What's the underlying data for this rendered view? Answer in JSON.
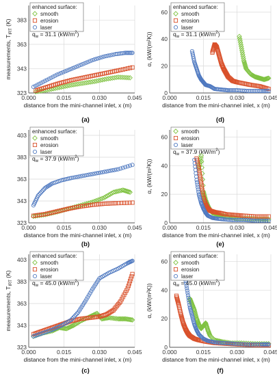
{
  "colors": {
    "smooth": "#7fc241",
    "erosion": "#d9512b",
    "laser": "#4f79c0",
    "grid": "#d9d9d9",
    "axis": "#555555"
  },
  "chart_data": [
    {
      "panel": "(a)",
      "type": "scatter",
      "xlabel": "distance from the mini-channel inlet, x (m)",
      "ylabel": "measurements, T_IRT (K)",
      "ylabel_main": "measurements, T",
      "ylabel_sub": "IRT",
      "ylabel_unit": " (K)",
      "xlim": [
        0,
        0.045
      ],
      "ylim": [
        323,
        395
      ],
      "xticks": [
        "0.000",
        "0.015",
        "0.030",
        "0.045"
      ],
      "yticks": [
        "323",
        "343",
        "363",
        "383"
      ],
      "legend_title": "enhanced surface:",
      "annotation": "q_w = 31.1 (kW/m^2)",
      "series": [
        {
          "name": "smooth",
          "marker": "diamond",
          "x": [
            0.003,
            0.008,
            0.013,
            0.018,
            0.023,
            0.028,
            0.033,
            0.038,
            0.043
          ],
          "y": [
            324,
            325.5,
            327.5,
            329.5,
            331,
            332.5,
            334.5,
            336,
            335.5
          ]
        },
        {
          "name": "erosion",
          "marker": "square",
          "x": [
            0.003,
            0.008,
            0.013,
            0.018,
            0.023,
            0.028,
            0.033,
            0.038,
            0.044
          ],
          "y": [
            325,
            328,
            331,
            333.5,
            335.5,
            337.5,
            339.5,
            341.5,
            344
          ]
        },
        {
          "name": "laser",
          "marker": "circle",
          "x": [
            0.002,
            0.007,
            0.012,
            0.017,
            0.022,
            0.027,
            0.032,
            0.037,
            0.041,
            0.044
          ],
          "y": [
            328,
            333,
            338,
            342,
            346,
            350,
            353,
            355,
            356,
            356
          ]
        }
      ]
    },
    {
      "panel": "(d)",
      "type": "scatter",
      "xlabel": "distance from the mini-channel inlet, x (m)",
      "ylabel": "α, (kW/(m²K))",
      "xlim": [
        0,
        0.045
      ],
      "ylim": [
        0,
        65
      ],
      "xticks": [
        "0.000",
        "0.015",
        "0.030",
        "0.045"
      ],
      "yticks": [
        "0",
        "20",
        "40",
        "60"
      ],
      "legend_title": "enhanced surface:",
      "annotation": "q_w = 31.1 (kW/m^2)",
      "series": [
        {
          "name": "smooth",
          "marker": "diamond",
          "x": [
            0.031,
            0.032,
            0.033,
            0.034,
            0.036,
            0.038,
            0.04,
            0.042,
            0.044
          ],
          "y": [
            42,
            33,
            24,
            18,
            14,
            12,
            11,
            10,
            11
          ]
        },
        {
          "name": "erosion",
          "marker": "square",
          "x": [
            0.019,
            0.02,
            0.021,
            0.022,
            0.023,
            0.024,
            0.025,
            0.026,
            0.028,
            0.03,
            0.033,
            0.036,
            0.04,
            0.044
          ],
          "y": [
            30,
            36,
            34,
            28,
            22,
            18,
            15,
            12,
            9,
            8,
            7,
            6,
            5,
            3
          ]
        },
        {
          "name": "laser",
          "marker": "circle",
          "x": [
            0.01,
            0.011,
            0.012,
            0.013,
            0.014,
            0.015,
            0.016,
            0.018,
            0.02,
            0.023,
            0.026,
            0.03,
            0.035,
            0.04,
            0.044
          ],
          "y": [
            31,
            23,
            18,
            13,
            10,
            8,
            6,
            5,
            3,
            2.5,
            2,
            2,
            1.5,
            1.5,
            1.5
          ]
        }
      ]
    },
    {
      "panel": "(b)",
      "type": "scatter",
      "xlabel": "distance from the mini-channel inlet, x (m)",
      "ylabel": "measurements, T_IRT (K)",
      "ylabel_main": "",
      "ylabel_sub": "",
      "ylabel_unit": "",
      "xlim": [
        0,
        0.045
      ],
      "ylim": [
        323,
        408
      ],
      "xticks": [
        "0.000",
        "0.015",
        "0.030",
        "0.045"
      ],
      "yticks": [
        "323",
        "343",
        "363",
        "383",
        "403"
      ],
      "legend_title": "enhanced surface:",
      "annotation": "q_w = 37.9 (kW/m^2)",
      "series": [
        {
          "name": "smooth",
          "marker": "diamond",
          "x": [
            0.002,
            0.007,
            0.012,
            0.017,
            0.022,
            0.027,
            0.032,
            0.036,
            0.04,
            0.043
          ],
          "y": [
            329,
            330.5,
            333,
            336,
            339,
            342,
            346,
            351,
            353,
            351
          ]
        },
        {
          "name": "erosion",
          "marker": "square",
          "x": [
            0.002,
            0.007,
            0.012,
            0.017,
            0.022,
            0.027,
            0.032,
            0.037,
            0.044
          ],
          "y": [
            329.5,
            331,
            333.5,
            336,
            338,
            339.5,
            340.5,
            341,
            341.5
          ]
        },
        {
          "name": "laser",
          "marker": "circle",
          "x": [
            0.002,
            0.004,
            0.007,
            0.01,
            0.014,
            0.018,
            0.023,
            0.028,
            0.033,
            0.038,
            0.044
          ],
          "y": [
            339,
            348,
            355,
            359,
            362,
            364,
            366,
            368,
            370,
            372,
            376
          ]
        }
      ]
    },
    {
      "panel": "(e)",
      "type": "scatter",
      "xlabel": "distance from the mini-channel inlet, x (m)",
      "ylabel": "α, (kW/(m²K))",
      "xlim": [
        0,
        0.045
      ],
      "ylim": [
        0,
        65
      ],
      "xticks": [
        "0.000",
        "0.015",
        "0.030",
        "0.045"
      ],
      "yticks": [
        "0",
        "20",
        "40",
        "60"
      ],
      "legend_title": "",
      "annotation": "q_w = 37.9 (kW/m^2)",
      "series": [
        {
          "name": "smooth",
          "marker": "diamond",
          "x": [
            0.013,
            0.014,
            0.015,
            0.016,
            0.017,
            0.018,
            0.019,
            0.021,
            0.023,
            0.026,
            0.03,
            0.035,
            0.04,
            0.044
          ],
          "y": [
            38,
            47,
            22,
            16,
            12,
            9,
            7,
            6,
            5,
            4,
            3,
            3,
            2.5,
            2.5
          ]
        },
        {
          "name": "erosion",
          "marker": "square",
          "x": [
            0.012,
            0.013,
            0.014,
            0.015,
            0.016,
            0.017,
            0.018,
            0.02,
            0.022,
            0.025,
            0.029,
            0.033,
            0.038,
            0.044
          ],
          "y": [
            45,
            38,
            28,
            18,
            13,
            10,
            8.5,
            7.5,
            7,
            6,
            5.5,
            5,
            4.5,
            4.5
          ]
        },
        {
          "name": "laser",
          "marker": "circle",
          "x": [
            0.011,
            0.012,
            0.013,
            0.014,
            0.015,
            0.016,
            0.017,
            0.019,
            0.021,
            0.024,
            0.028,
            0.033,
            0.038,
            0.044
          ],
          "y": [
            44,
            30,
            20,
            14,
            10,
            7,
            5,
            3.5,
            3,
            2.5,
            2,
            2,
            1.5,
            1.5
          ]
        }
      ]
    },
    {
      "panel": "(c)",
      "type": "scatter",
      "xlabel": "distance from the mini-channel inlet, x (m)",
      "ylabel": "measurements, T_IRT (K)",
      "ylabel_main": "measurements, T",
      "ylabel_sub": "IRT",
      "ylabel_unit": " (K)",
      "xlim": [
        0,
        0.045
      ],
      "ylim": [
        323,
        408
      ],
      "xticks": [
        "0.000",
        "0.015",
        "0.030",
        "0.045"
      ],
      "yticks": [
        "323",
        "343",
        "363",
        "383",
        "403"
      ],
      "legend_title": "enhanced surface:",
      "annotation": "q_w = 45.0 (kW/m^2)",
      "series": [
        {
          "name": "smooth",
          "marker": "diamond",
          "x": [
            0.002,
            0.006,
            0.01,
            0.013,
            0.016,
            0.019,
            0.022,
            0.026,
            0.029,
            0.031,
            0.034,
            0.038,
            0.041,
            0.044
          ],
          "y": [
            333,
            336,
            338,
            341,
            340,
            343,
            347,
            351,
            354,
            349,
            350,
            349,
            349,
            348
          ]
        },
        {
          "name": "erosion",
          "marker": "square",
          "x": [
            0.002,
            0.006,
            0.01,
            0.014,
            0.018,
            0.022,
            0.026,
            0.03,
            0.033,
            0.036,
            0.039,
            0.042,
            0.044
          ],
          "y": [
            335,
            338,
            341,
            344,
            347,
            349,
            350,
            351,
            353,
            357,
            365,
            377,
            390
          ]
        },
        {
          "name": "laser",
          "marker": "circle",
          "x": [
            0.002,
            0.006,
            0.01,
            0.014,
            0.018,
            0.021,
            0.024,
            0.027,
            0.03,
            0.034,
            0.038,
            0.042,
            0.044
          ],
          "y": [
            333,
            336,
            339,
            343,
            348,
            355,
            365,
            376,
            386,
            391,
            395,
            400,
            402
          ]
        }
      ]
    },
    {
      "panel": "(f)",
      "type": "scatter",
      "xlabel": "distance from the mini-channel inlet, x (m)",
      "ylabel": "α, (kW/(m²K))",
      "xlim": [
        0,
        0.045
      ],
      "ylim": [
        0,
        65
      ],
      "xticks": [
        "0.000",
        "0.015",
        "0.030",
        "0.045"
      ],
      "yticks": [
        "0",
        "20",
        "40",
        "60"
      ],
      "legend_title": "enhanced surface:",
      "annotation": "q_w = 45.0 (kW/m^2)",
      "series": [
        {
          "name": "smooth",
          "marker": "diamond",
          "x": [
            0.009,
            0.01,
            0.011,
            0.012,
            0.013,
            0.014,
            0.015,
            0.016,
            0.017,
            0.018,
            0.02,
            0.023,
            0.027,
            0.032,
            0.038,
            0.044
          ],
          "y": [
            34,
            30,
            26,
            20,
            16,
            13,
            15,
            17,
            12,
            8,
            5,
            4,
            3,
            3,
            2.5,
            2.5
          ]
        },
        {
          "name": "erosion",
          "marker": "square",
          "x": [
            0.003,
            0.004,
            0.005,
            0.006,
            0.007,
            0.008,
            0.009,
            0.011,
            0.013,
            0.016,
            0.02,
            0.025,
            0.031,
            0.038,
            0.044
          ],
          "y": [
            36,
            30,
            23,
            17,
            13,
            10,
            8,
            6,
            5,
            4,
            3,
            2.5,
            2,
            1.5,
            1.5
          ]
        },
        {
          "name": "laser",
          "marker": "circle",
          "x": [
            0.007,
            0.008,
            0.009,
            0.01,
            0.011,
            0.012,
            0.013,
            0.015,
            0.017,
            0.02,
            0.024,
            0.029,
            0.035,
            0.041,
            0.044
          ],
          "y": [
            48,
            38,
            28,
            22,
            16,
            12,
            9,
            6,
            4.5,
            3.5,
            3,
            2.5,
            2,
            2,
            2
          ]
        }
      ]
    }
  ]
}
